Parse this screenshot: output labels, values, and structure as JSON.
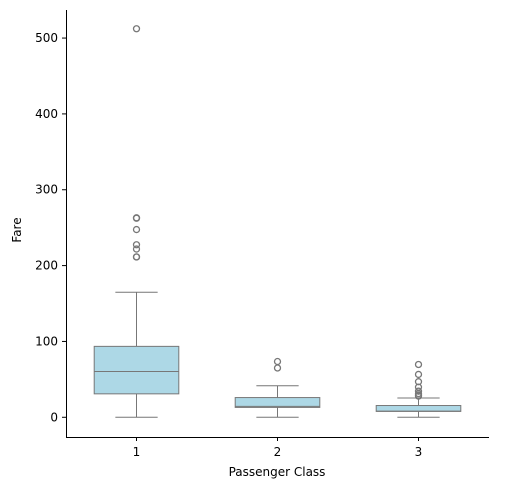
{
  "chart_data": {
    "type": "box",
    "xlabel": "Passenger Class",
    "ylabel": "Fare",
    "ylim": [
      -26,
      537
    ],
    "yticks": [
      0,
      100,
      200,
      300,
      400,
      500
    ],
    "grid": false,
    "box_color": "#add8e6",
    "line_color": "#777777",
    "categories": [
      "1",
      "2",
      "3"
    ],
    "boxes": [
      {
        "category": "1",
        "whisker_low": 0,
        "q1": 30.9,
        "median": 60.3,
        "q3": 93.5,
        "whisker_high": 164.9,
        "outliers": [
          211.3,
          211.5,
          221.8,
          227.5,
          247.5,
          262.4,
          263,
          512.3
        ]
      },
      {
        "category": "2",
        "whisker_low": 0,
        "q1": 13,
        "median": 14.3,
        "q3": 26,
        "whisker_high": 41.6,
        "outliers": [
          65,
          73.5
        ]
      },
      {
        "category": "3",
        "whisker_low": 0,
        "q1": 7.75,
        "median": 8.05,
        "q3": 15.5,
        "whisker_high": 25.5,
        "outliers": [
          27.9,
          29.1,
          31.3,
          34.4,
          39.7,
          46.9,
          56.5,
          69.6
        ]
      }
    ]
  }
}
